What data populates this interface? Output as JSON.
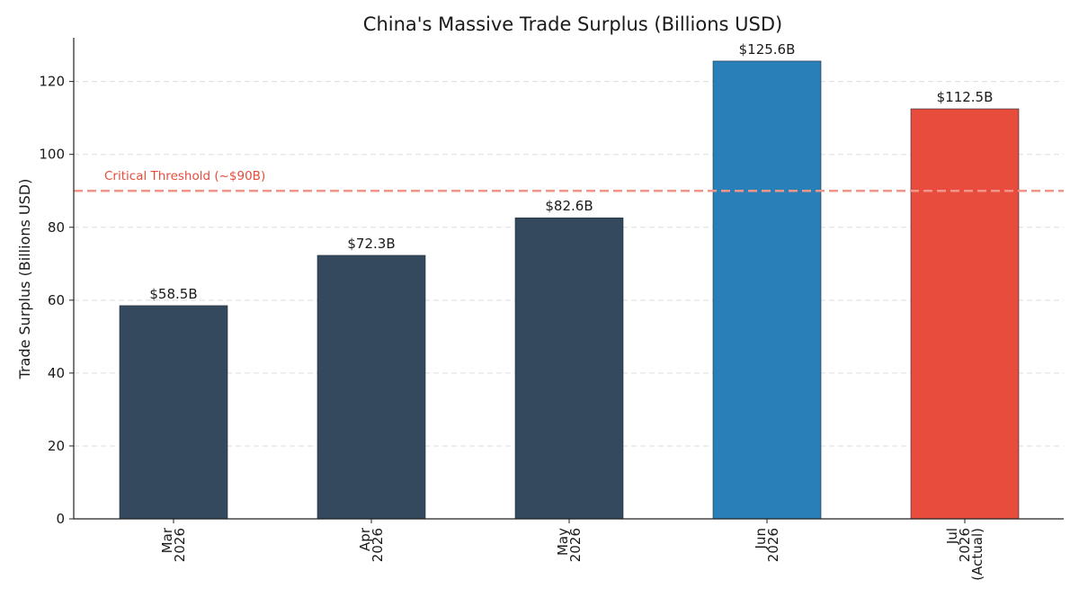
{
  "chart_data": {
    "type": "bar",
    "title": "China's Massive Trade Surplus (Billions USD)",
    "ylabel": "Trade Surplus (Billions USD)",
    "xlabel": "",
    "ylim": [
      0,
      132
    ],
    "yticks": [
      0,
      20,
      40,
      60,
      80,
      100,
      120
    ],
    "grid": "horizontal-dashed",
    "categories": [
      [
        "Mar",
        "2026"
      ],
      [
        "Apr",
        "2026"
      ],
      [
        "May",
        "2026"
      ],
      [
        "Jun",
        "2026"
      ],
      [
        "Jul",
        "2026",
        "(Actual)"
      ]
    ],
    "values": [
      58.5,
      72.3,
      82.6,
      125.6,
      112.5
    ],
    "data_labels": [
      "$58.5B",
      "$72.3B",
      "$82.6B",
      "$125.6B",
      "$112.5B"
    ],
    "colors": [
      "#34495e",
      "#34495e",
      "#34495e",
      "#2980b9",
      "#e74c3c"
    ],
    "threshold": {
      "value": 90,
      "label": "Critical Threshold (~$90B)",
      "color": "#f1948a"
    }
  }
}
